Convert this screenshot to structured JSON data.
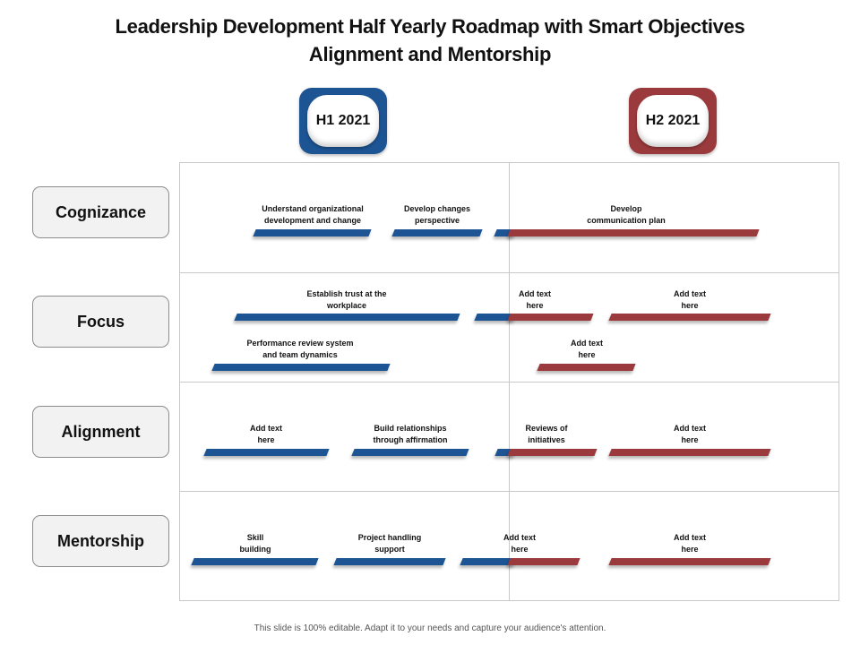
{
  "title": {
    "line1": "Leadership Development Half Yearly Roadmap with Smart Objectives",
    "line2": "Alignment and Mentorship"
  },
  "periods": {
    "h1": "H1 2021",
    "h2": "H2 2021"
  },
  "colors": {
    "h1": "#1d5494",
    "h2": "#9b3a3c"
  },
  "rows": [
    {
      "label": "Cognizance",
      "tasks": [
        "Understand organizational\ndevelopment and change",
        "Develop changes\nperspective",
        "Develop\ncommunication plan"
      ]
    },
    {
      "label": "Focus",
      "tasks": [
        "Establish trust at the\nworkplace",
        "Add text\nhere",
        "Add text\nhere",
        "Performance review system\nand team dynamics",
        "Add text\nhere"
      ]
    },
    {
      "label": "Alignment",
      "tasks": [
        "Add text\nhere",
        "Build relationships\nthrough affirmation",
        "Reviews of\ninitiatives",
        "Add text\nhere"
      ]
    },
    {
      "label": "Mentorship",
      "tasks": [
        "Skill\nbuilding",
        "Project handling\nsupport",
        "Add text\nhere",
        "Add text\nhere"
      ]
    }
  ],
  "footer": "This slide is 100% editable. Adapt it to your needs and capture your audience's attention."
}
